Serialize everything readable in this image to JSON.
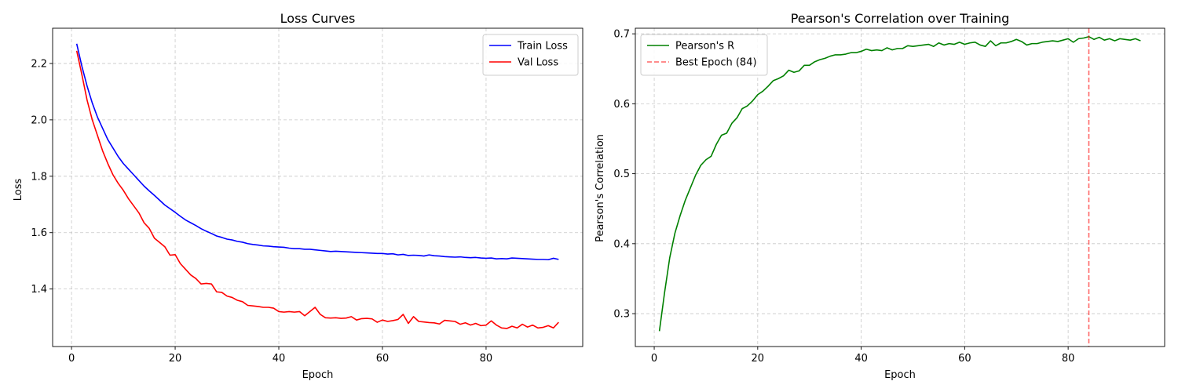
{
  "chart_data": [
    {
      "type": "line",
      "title": "Loss Curves",
      "xlabel": "Epoch",
      "ylabel": "Loss",
      "xlim": [
        -3.65,
        98.65
      ],
      "ylim": [
        1.196,
        2.325
      ],
      "xticks": [
        0,
        20,
        40,
        60,
        80
      ],
      "yticks": [
        1.4,
        1.6,
        1.8,
        2.0,
        2.2
      ],
      "xtick_labels": [
        "0",
        "20",
        "40",
        "60",
        "80"
      ],
      "ytick_labels": [
        "1.4",
        "1.6",
        "1.8",
        "2.0",
        "2.2"
      ],
      "grid": true,
      "legend_position": "upper-right",
      "x": [
        1,
        2,
        3,
        4,
        5,
        6,
        7,
        8,
        9,
        10,
        11,
        12,
        13,
        14,
        15,
        16,
        17,
        18,
        19,
        20,
        21,
        22,
        23,
        24,
        25,
        26,
        27,
        28,
        29,
        30,
        31,
        32,
        33,
        34,
        35,
        36,
        37,
        38,
        39,
        40,
        41,
        42,
        43,
        44,
        45,
        46,
        47,
        48,
        49,
        50,
        51,
        52,
        53,
        54,
        55,
        56,
        57,
        58,
        59,
        60,
        61,
        62,
        63,
        64,
        65,
        66,
        67,
        68,
        69,
        70,
        71,
        72,
        73,
        74,
        75,
        76,
        77,
        78,
        79,
        80,
        81,
        82,
        83,
        84,
        85,
        86,
        87,
        88,
        89,
        90,
        91,
        92,
        93,
        94
      ],
      "series": [
        {
          "name": "Train Loss",
          "color": "#0000ff",
          "values": [
            2.27,
            2.19,
            2.12,
            2.06,
            2.01,
            1.97,
            1.93,
            1.9,
            1.87,
            1.845,
            1.825,
            1.805,
            1.785,
            1.765,
            1.748,
            1.732,
            1.715,
            1.698,
            1.685,
            1.672,
            1.658,
            1.645,
            1.635,
            1.625,
            1.614,
            1.605,
            1.597,
            1.588,
            1.583,
            1.577,
            1.574,
            1.569,
            1.566,
            1.561,
            1.558,
            1.556,
            1.553,
            1.552,
            1.55,
            1.549,
            1.548,
            1.545,
            1.543,
            1.543,
            1.541,
            1.541,
            1.539,
            1.537,
            1.535,
            1.533,
            1.534,
            1.533,
            1.532,
            1.531,
            1.53,
            1.529,
            1.528,
            1.527,
            1.526,
            1.526,
            1.524,
            1.525,
            1.521,
            1.523,
            1.519,
            1.52,
            1.519,
            1.517,
            1.521,
            1.518,
            1.517,
            1.515,
            1.514,
            1.513,
            1.514,
            1.512,
            1.511,
            1.512,
            1.51,
            1.509,
            1.51,
            1.507,
            1.508,
            1.507,
            1.51,
            1.509,
            1.508,
            1.507,
            1.506,
            1.505,
            1.505,
            1.504,
            1.509,
            1.505
          ]
        },
        {
          "name": "Val Loss",
          "color": "#ff0000",
          "values": [
            2.245,
            2.16,
            2.07,
            2.0,
            1.945,
            1.89,
            1.845,
            1.805,
            1.775,
            1.75,
            1.72,
            1.695,
            1.67,
            1.635,
            1.615,
            1.58,
            1.565,
            1.55,
            1.52,
            1.522,
            1.49,
            1.47,
            1.45,
            1.437,
            1.418,
            1.42,
            1.418,
            1.39,
            1.388,
            1.375,
            1.37,
            1.36,
            1.355,
            1.342,
            1.34,
            1.338,
            1.335,
            1.335,
            1.332,
            1.32,
            1.318,
            1.32,
            1.318,
            1.32,
            1.305,
            1.32,
            1.335,
            1.31,
            1.298,
            1.297,
            1.298,
            1.296,
            1.297,
            1.302,
            1.29,
            1.295,
            1.296,
            1.294,
            1.282,
            1.29,
            1.285,
            1.288,
            1.292,
            1.31,
            1.278,
            1.302,
            1.285,
            1.283,
            1.281,
            1.28,
            1.276,
            1.289,
            1.287,
            1.285,
            1.275,
            1.28,
            1.272,
            1.278,
            1.27,
            1.272,
            1.287,
            1.272,
            1.262,
            1.26,
            1.268,
            1.262,
            1.275,
            1.265,
            1.272,
            1.262,
            1.264,
            1.27,
            1.262,
            1.282
          ]
        }
      ]
    },
    {
      "type": "line",
      "title": "Pearson's Correlation over Training",
      "xlabel": "Epoch",
      "ylabel": "Pearson's Correlation",
      "xlim": [
        -3.65,
        98.65
      ],
      "ylim": [
        0.253,
        0.708
      ],
      "xticks": [
        0,
        20,
        40,
        60,
        80
      ],
      "yticks": [
        0.3,
        0.4,
        0.5,
        0.6,
        0.7
      ],
      "xtick_labels": [
        "0",
        "20",
        "40",
        "60",
        "80"
      ],
      "ytick_labels": [
        "0.3",
        "0.4",
        "0.5",
        "0.6",
        "0.7"
      ],
      "grid": true,
      "legend_position": "upper-left",
      "x": [
        1,
        2,
        3,
        4,
        5,
        6,
        7,
        8,
        9,
        10,
        11,
        12,
        13,
        14,
        15,
        16,
        17,
        18,
        19,
        20,
        21,
        22,
        23,
        24,
        25,
        26,
        27,
        28,
        29,
        30,
        31,
        32,
        33,
        34,
        35,
        36,
        37,
        38,
        39,
        40,
        41,
        42,
        43,
        44,
        45,
        46,
        47,
        48,
        49,
        50,
        51,
        52,
        53,
        54,
        55,
        56,
        57,
        58,
        59,
        60,
        61,
        62,
        63,
        64,
        65,
        66,
        67,
        68,
        69,
        70,
        71,
        72,
        73,
        74,
        75,
        76,
        77,
        78,
        79,
        80,
        81,
        82,
        83,
        84,
        85,
        86,
        87,
        88,
        89,
        90,
        91,
        92,
        93,
        94
      ],
      "series": [
        {
          "name": "Pearson's R",
          "color": "#008000",
          "values": [
            0.275,
            0.33,
            0.38,
            0.415,
            0.44,
            0.462,
            0.48,
            0.498,
            0.512,
            0.52,
            0.525,
            0.542,
            0.555,
            0.558,
            0.572,
            0.58,
            0.593,
            0.597,
            0.604,
            0.613,
            0.618,
            0.625,
            0.633,
            0.636,
            0.64,
            0.648,
            0.645,
            0.647,
            0.655,
            0.655,
            0.66,
            0.663,
            0.665,
            0.668,
            0.67,
            0.67,
            0.671,
            0.673,
            0.673,
            0.675,
            0.678,
            0.676,
            0.677,
            0.676,
            0.68,
            0.677,
            0.679,
            0.679,
            0.683,
            0.682,
            0.683,
            0.684,
            0.685,
            0.682,
            0.687,
            0.684,
            0.686,
            0.685,
            0.688,
            0.685,
            0.687,
            0.688,
            0.684,
            0.682,
            0.69,
            0.683,
            0.687,
            0.687,
            0.689,
            0.692,
            0.689,
            0.684,
            0.686,
            0.686,
            0.688,
            0.689,
            0.69,
            0.689,
            0.691,
            0.693,
            0.688,
            0.693,
            0.694,
            0.696,
            0.692,
            0.695,
            0.691,
            0.693,
            0.69,
            0.693,
            0.692,
            0.691,
            0.693,
            0.69
          ]
        }
      ],
      "reference_line": {
        "name": "Best Epoch (84)",
        "x": 84,
        "color": "#ff0000",
        "style": "dashed",
        "opacity": 0.6
      }
    }
  ]
}
